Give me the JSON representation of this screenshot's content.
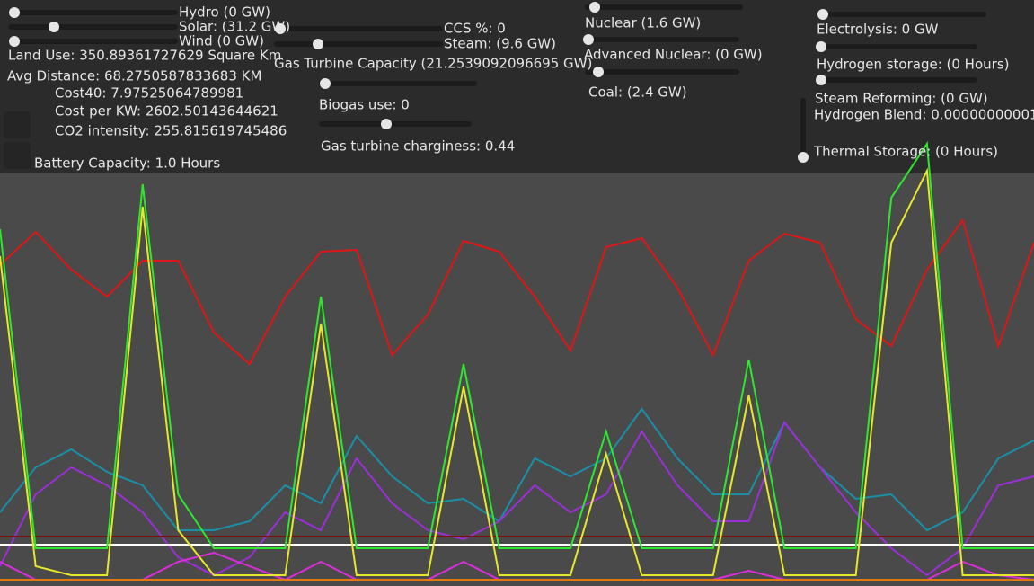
{
  "controls": {
    "hydro": "Hydro (0 GW)",
    "solar": "Solar: (31.2 GW)",
    "wind": "Wind (0 GW)",
    "land_use": "Land Use: 350.89361727629 Square Km",
    "avg_distance": "Avg Distance: 68.2750587833683 KM",
    "cost40": "Cost40: 7.97525064789981",
    "cost_per_kw": "Cost per KW: 2602.50143644621",
    "co2_intensity": "CO2 intensity: 255.815619745486",
    "battery": "Battery Capacity: 1.0 Hours",
    "ccs": "CCS %: 0",
    "steam": "Steam: (9.6 GW)",
    "gas_turbine": "Gas Turbine Capacity (21.2539092096695 GW)",
    "biogas": "Biogas use: 0",
    "charginess": "Gas turbine charginess: 0.44",
    "nuclear": "Nuclear (1.6 GW)",
    "advanced_nuclear": "Advanced Nuclear: (0 GW)",
    "coal": "Coal: (2.4 GW)",
    "electrolysis": "Electrolysis: 0 GW",
    "hydrogen_storage": "Hydrogen storage: (0 Hours)",
    "steam_reforming": "Steam Reforming: (0 GW)",
    "hydrogen_blend": "Hydrogen Blend: 0.00000000001",
    "thermal_storage": "Thermal Storage: (0 Hours)"
  },
  "chart_data": {
    "type": "line",
    "ylim": [
      0,
      650
    ],
    "series": [
      {
        "color": "#e01515",
        "values": [
          355,
          392,
          350,
          320,
          360,
          360,
          280,
          245,
          320,
          370,
          372,
          255,
          300,
          382,
          370,
          320,
          260,
          375,
          385,
          330,
          255,
          360,
          390,
          380,
          295,
          265,
          350,
          405,
          265,
          380
        ]
      },
      {
        "color": "#1a8fa8",
        "values": [
          80,
          130,
          150,
          125,
          110,
          60,
          60,
          70,
          110,
          90,
          165,
          120,
          90,
          95,
          70,
          140,
          120,
          140,
          195,
          140,
          100,
          100,
          180,
          130,
          95,
          100,
          60,
          80,
          140,
          160
        ]
      },
      {
        "color": "#9b2fd8",
        "values": [
          20,
          100,
          130,
          110,
          80,
          30,
          10,
          30,
          80,
          60,
          140,
          90,
          60,
          50,
          70,
          110,
          80,
          100,
          170,
          110,
          70,
          70,
          180,
          130,
          80,
          40,
          10,
          40,
          110,
          120
        ]
      },
      {
        "color": "#d92ed9",
        "values": [
          25,
          5,
          5,
          5,
          5,
          25,
          35,
          20,
          5,
          25,
          5,
          5,
          5,
          25,
          5,
          5,
          5,
          5,
          5,
          5,
          5,
          15,
          5,
          5,
          5,
          5,
          5,
          25,
          10,
          5
        ]
      },
      {
        "color": "#7a1010",
        "values": [
          53,
          53,
          53,
          53,
          53,
          53,
          53,
          53,
          53,
          53,
          53,
          53,
          53,
          53,
          53,
          53,
          53,
          53,
          53,
          53,
          53,
          53,
          53,
          53,
          53,
          53,
          53,
          53,
          53,
          53
        ]
      },
      {
        "color": "#ffffff",
        "values": [
          44,
          44,
          44,
          44,
          44,
          44,
          44,
          44,
          44,
          44,
          44,
          44,
          44,
          44,
          44,
          44,
          44,
          44,
          44,
          44,
          44,
          44,
          44,
          44,
          44,
          44,
          44,
          44,
          44,
          44
        ]
      },
      {
        "color": "#e07a10",
        "values": [
          5,
          5,
          5,
          5,
          5,
          5,
          5,
          5,
          5,
          5,
          5,
          5,
          5,
          5,
          5,
          5,
          5,
          5,
          5,
          5,
          5,
          5,
          5,
          5,
          5,
          5,
          5,
          5,
          5,
          5
        ]
      },
      {
        "color": "#e8e82a",
        "values": [
          365,
          20,
          10,
          10,
          420,
          60,
          10,
          10,
          10,
          290,
          10,
          10,
          10,
          220,
          10,
          10,
          10,
          145,
          10,
          10,
          10,
          210,
          10,
          10,
          10,
          380,
          460,
          10,
          10,
          10
        ]
      },
      {
        "color": "#2ee82e",
        "values": [
          395,
          40,
          40,
          40,
          445,
          100,
          40,
          40,
          40,
          320,
          40,
          40,
          40,
          245,
          40,
          40,
          40,
          170,
          40,
          40,
          40,
          250,
          40,
          40,
          40,
          430,
          490,
          40,
          40,
          40
        ]
      }
    ]
  }
}
